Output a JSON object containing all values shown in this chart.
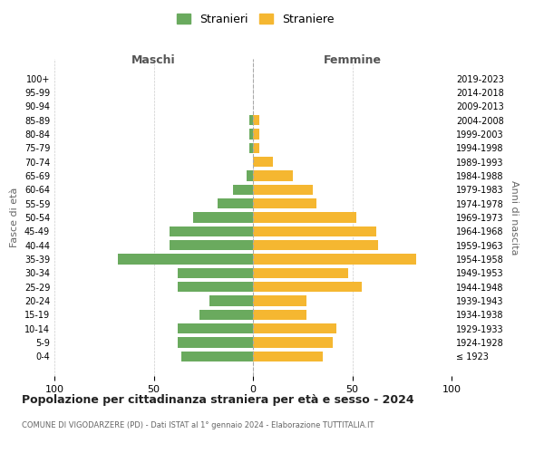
{
  "age_groups": [
    "100+",
    "95-99",
    "90-94",
    "85-89",
    "80-84",
    "75-79",
    "70-74",
    "65-69",
    "60-64",
    "55-59",
    "50-54",
    "45-49",
    "40-44",
    "35-39",
    "30-34",
    "25-29",
    "20-24",
    "15-19",
    "10-14",
    "5-9",
    "0-4"
  ],
  "birth_years": [
    "≤ 1923",
    "1924-1928",
    "1929-1933",
    "1934-1938",
    "1939-1943",
    "1944-1948",
    "1949-1953",
    "1954-1958",
    "1959-1963",
    "1964-1968",
    "1969-1973",
    "1974-1978",
    "1979-1983",
    "1984-1988",
    "1989-1993",
    "1994-1998",
    "1999-2003",
    "2004-2008",
    "2009-2013",
    "2014-2018",
    "2019-2023"
  ],
  "maschi": [
    0,
    0,
    0,
    2,
    2,
    2,
    0,
    3,
    10,
    18,
    30,
    42,
    42,
    68,
    38,
    38,
    22,
    27,
    38,
    38,
    36
  ],
  "femmine": [
    0,
    0,
    0,
    3,
    3,
    3,
    10,
    20,
    30,
    32,
    52,
    62,
    63,
    82,
    48,
    55,
    27,
    27,
    42,
    40,
    35
  ],
  "maschi_color": "#6aaa5e",
  "femmine_color": "#f5b731",
  "background_color": "#ffffff",
  "grid_color": "#cccccc",
  "title": "Popolazione per cittadinanza straniera per età e sesso - 2024",
  "subtitle": "COMUNE DI VIGODARZERE (PD) - Dati ISTAT al 1° gennaio 2024 - Elaborazione TUTTITALIA.IT",
  "xlabel_left": "Maschi",
  "xlabel_right": "Femmine",
  "ylabel_left": "Fasce di età",
  "ylabel_right": "Anni di nascita",
  "legend_stranieri": "Stranieri",
  "legend_straniere": "Straniere",
  "xlim": 100
}
